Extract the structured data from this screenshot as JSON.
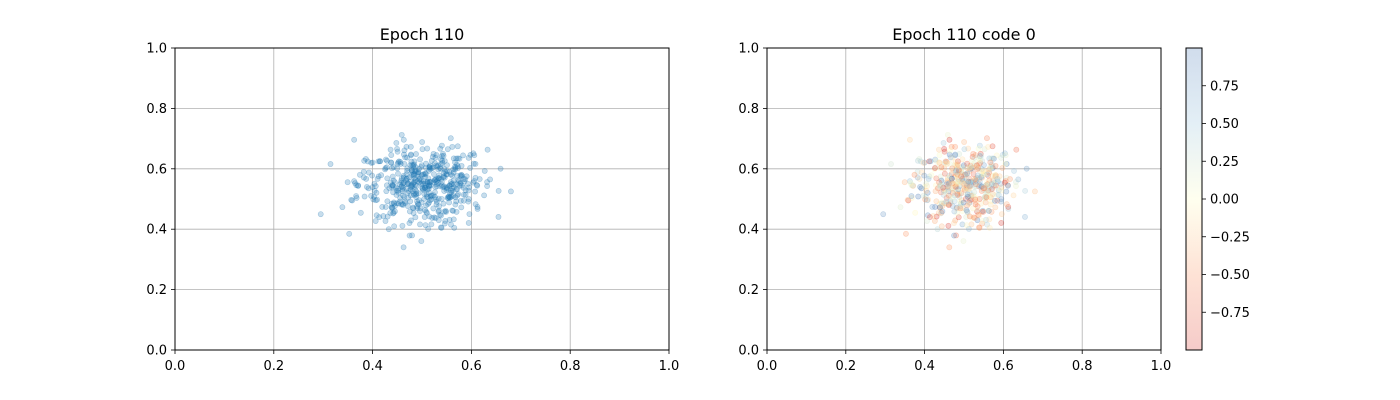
{
  "chart_data": [
    {
      "type": "scatter",
      "title": "Epoch 110",
      "xlabel": "",
      "ylabel": "",
      "xlim": [
        0,
        1
      ],
      "ylim": [
        0,
        1
      ],
      "xticks": [
        "0.0",
        "0.2",
        "0.4",
        "0.6",
        "0.8",
        "1.0"
      ],
      "yticks": [
        "0.0",
        "0.2",
        "0.4",
        "0.6",
        "0.8",
        "1.0"
      ],
      "grid": true,
      "marker_color": "#1f77b4",
      "marker_alpha": 0.25,
      "points": {
        "count": 500,
        "x_center": 0.5,
        "y_center": 0.55,
        "x_range": [
          0.295,
          0.68
        ],
        "y_range": [
          0.34,
          0.75
        ]
      }
    },
    {
      "type": "scatter",
      "title": "Epoch 110 code 0",
      "xlabel": "",
      "ylabel": "",
      "xlim": [
        0,
        1
      ],
      "ylim": [
        0,
        1
      ],
      "xticks": [
        "0.0",
        "0.2",
        "0.4",
        "0.6",
        "0.8",
        "1.0"
      ],
      "yticks": [
        "0.0",
        "0.2",
        "0.4",
        "0.6",
        "0.8",
        "1.0"
      ],
      "grid": true,
      "colormap": "RdYlBu",
      "marker_alpha": 0.25,
      "colorbar": {
        "range": [
          -1,
          1
        ],
        "ticks": [
          "-0.75",
          "-0.50",
          "-0.25",
          "0.00",
          "0.25",
          "0.50",
          "0.75"
        ]
      },
      "points": {
        "same_positions_as": "Epoch 110",
        "value_range": [
          -1,
          1
        ]
      }
    }
  ]
}
